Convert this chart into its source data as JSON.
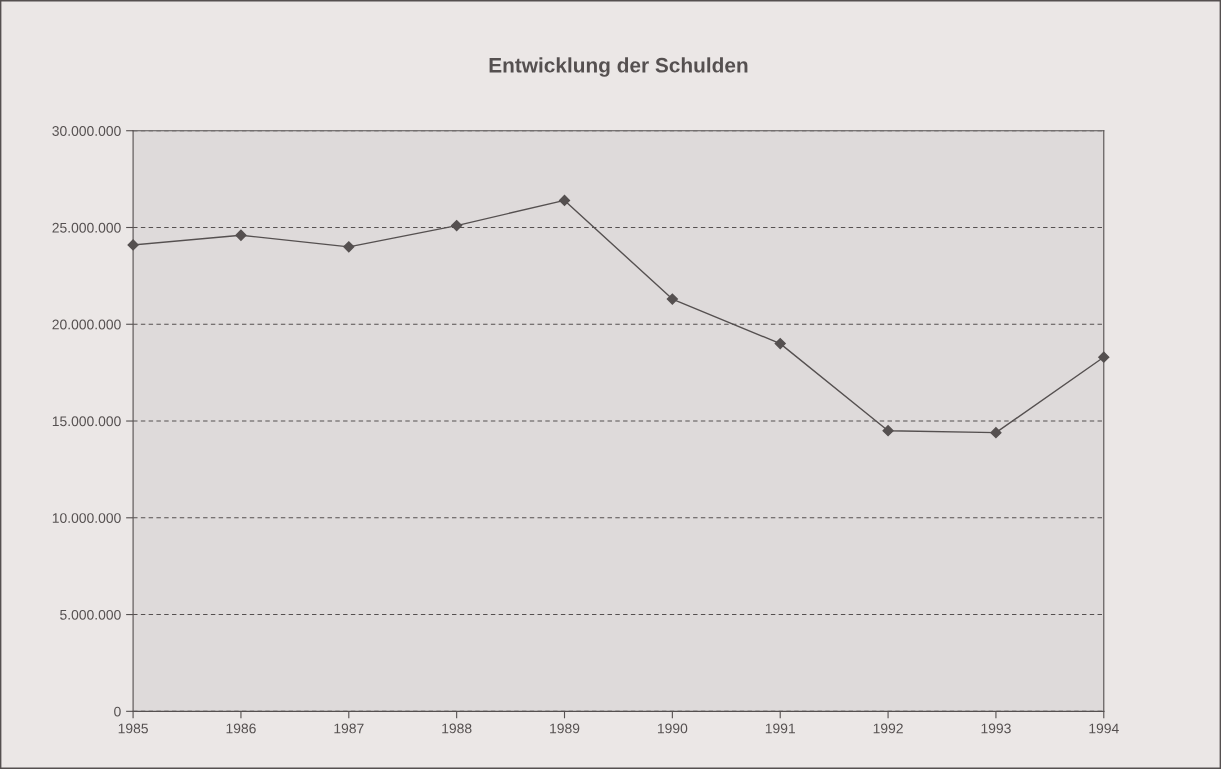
{
  "chart_data": {
    "type": "line",
    "title": "Entwicklung der Schulden",
    "categories": [
      "1985",
      "1986",
      "1987",
      "1988",
      "1989",
      "1990",
      "1991",
      "1992",
      "1993",
      "1994"
    ],
    "series": [
      {
        "color": "#555050",
        "values": [
          24100000,
          24600000,
          24000000,
          25100000,
          26400000,
          21300000,
          19000000,
          14500000,
          14400000,
          18300000
        ]
      }
    ],
    "ylim": [
      0,
      30000000
    ],
    "yticks": [
      {
        "value": 0,
        "label": "0"
      },
      {
        "value": 5000000,
        "label": "5.000.000"
      },
      {
        "value": 10000000,
        "label": "10.000.000"
      },
      {
        "value": 15000000,
        "label": "15.000.000"
      },
      {
        "value": 20000000,
        "label": "20.000.000"
      },
      {
        "value": 25000000,
        "label": "25.000.000"
      },
      {
        "value": 30000000,
        "label": "30.000.000"
      }
    ],
    "grid": "y",
    "marker": "diamond",
    "line_style": "solid"
  }
}
